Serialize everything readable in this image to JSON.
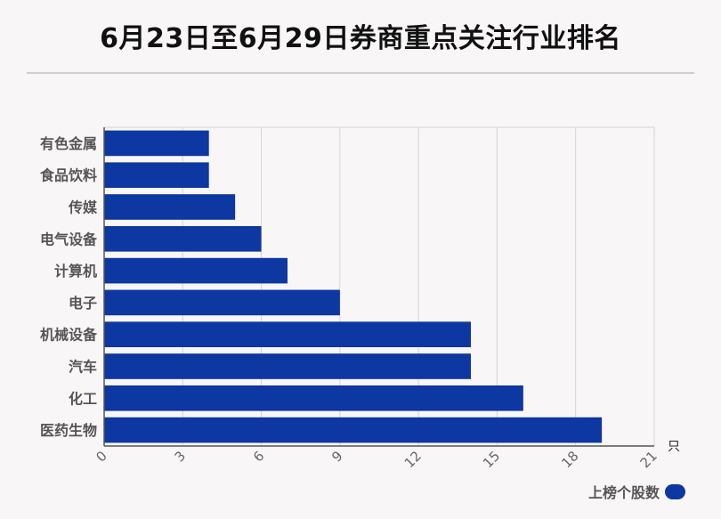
{
  "chart_data": {
    "type": "bar",
    "orientation": "horizontal",
    "title": "6月23日至6月29日券商重点关注行业排名",
    "categories": [
      "有色金属",
      "食品饮料",
      "传媒",
      "电气设备",
      "计算机",
      "电子",
      "机械设备",
      "汽车",
      "化工",
      "医药生物"
    ],
    "series": [
      {
        "name": "上榜个股数",
        "values": [
          4,
          4,
          5,
          6,
          7,
          9,
          14,
          14,
          16,
          19
        ]
      }
    ],
    "xlim": [
      0,
      21
    ],
    "xticks": [
      0,
      3,
      6,
      9,
      12,
      15,
      18,
      21
    ],
    "xunit": "只",
    "grid": true,
    "legend": "bottom-right",
    "color": "#0d37a1"
  }
}
